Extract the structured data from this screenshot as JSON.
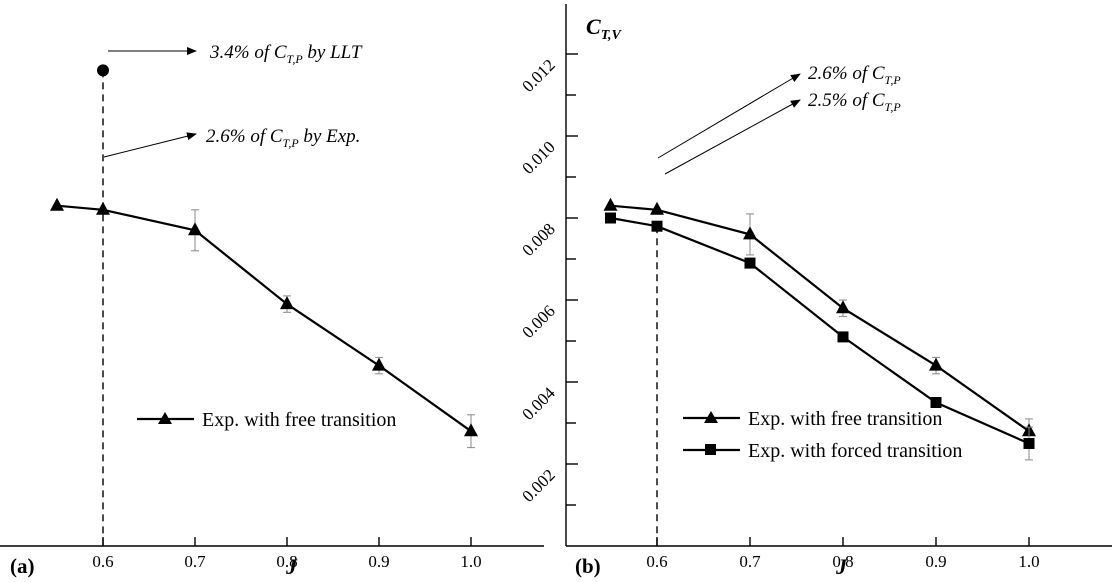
{
  "chart_data": [
    {
      "panel": "(a)",
      "type": "line",
      "xlabel": "J",
      "x_ticks": [
        "0.6",
        "0.7",
        "0.8",
        "0.9",
        "1.0"
      ],
      "xlim": [
        0.5,
        1.05
      ],
      "ylim": [
        0.0,
        0.012
      ],
      "series": [
        {
          "name": "Exp. with free transition",
          "marker": "triangle",
          "x": [
            0.55,
            0.6,
            0.7,
            0.8,
            0.9,
            1.0
          ],
          "y": [
            0.0083,
            0.0082,
            0.0077,
            0.0059,
            0.0044,
            0.0028
          ],
          "err": [
            0.0001,
            0.0001,
            0.0005,
            0.0002,
            0.0002,
            0.0004
          ]
        }
      ],
      "point": {
        "x": 0.6,
        "y": 0.0116
      },
      "annotations": [
        {
          "text": "3.4% of C",
          "sub": "T,P",
          "tail": " by LLT"
        },
        {
          "text": "2.6% of C",
          "sub": "T,P",
          "tail": " by Exp."
        }
      ],
      "legend_position": "center-right",
      "ref_line_x": 0.6
    },
    {
      "panel": "(b)",
      "type": "line",
      "xlabel": "J",
      "ylabel": {
        "main": "C",
        "sub": "T,V"
      },
      "x_ticks": [
        "0.6",
        "0.7",
        "0.8",
        "0.9",
        "1.0"
      ],
      "y_ticks": [
        "0.002",
        "0.004",
        "0.006",
        "0.008",
        "0.010",
        "0.012"
      ],
      "xlim": [
        0.5,
        1.05
      ],
      "ylim": [
        0.0,
        0.012
      ],
      "series": [
        {
          "name": "Exp. with free transition",
          "marker": "triangle",
          "x": [
            0.55,
            0.6,
            0.7,
            0.8,
            0.9,
            1.0
          ],
          "y": [
            0.0083,
            0.0082,
            0.0076,
            0.0058,
            0.0044,
            0.0028
          ],
          "err": [
            0.0001,
            0.0001,
            0.0005,
            0.0002,
            0.0002,
            0.0003
          ]
        },
        {
          "name": "Exp. with forced transition",
          "marker": "square",
          "x": [
            0.55,
            0.6,
            0.7,
            0.8,
            0.9,
            1.0
          ],
          "y": [
            0.008,
            0.0078,
            0.0069,
            0.0051,
            0.0035,
            0.0025
          ],
          "err": [
            0.0001,
            0.0001,
            0.0001,
            0.0001,
            0.0001,
            0.0004
          ]
        }
      ],
      "annotations": [
        {
          "text": "2.6% of C",
          "sub": "T,P",
          "tail": ""
        },
        {
          "text": "2.5% of C",
          "sub": "T,P",
          "tail": ""
        }
      ],
      "legend_position": "bottom-right",
      "ref_line_x": 0.6
    }
  ]
}
